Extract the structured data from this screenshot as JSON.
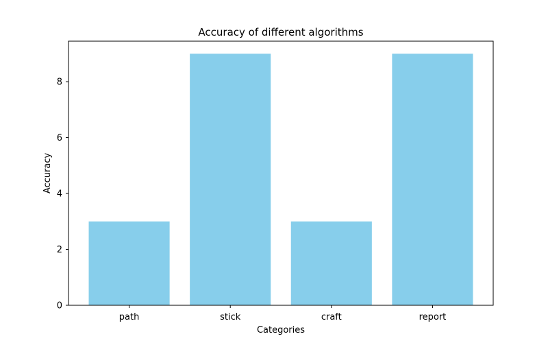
{
  "chart_data": {
    "type": "bar",
    "title": "Accuracy of different algorithms",
    "xlabel": "Categories",
    "ylabel": "Accuracy",
    "categories": [
      "path",
      "stick",
      "craft",
      "report"
    ],
    "values": [
      3,
      9,
      3,
      9
    ],
    "ylim": [
      0,
      9.45
    ],
    "yticks": [
      0,
      2,
      4,
      6,
      8
    ],
    "bar_color": "#87ceeb",
    "grid": false,
    "legend": "none"
  }
}
